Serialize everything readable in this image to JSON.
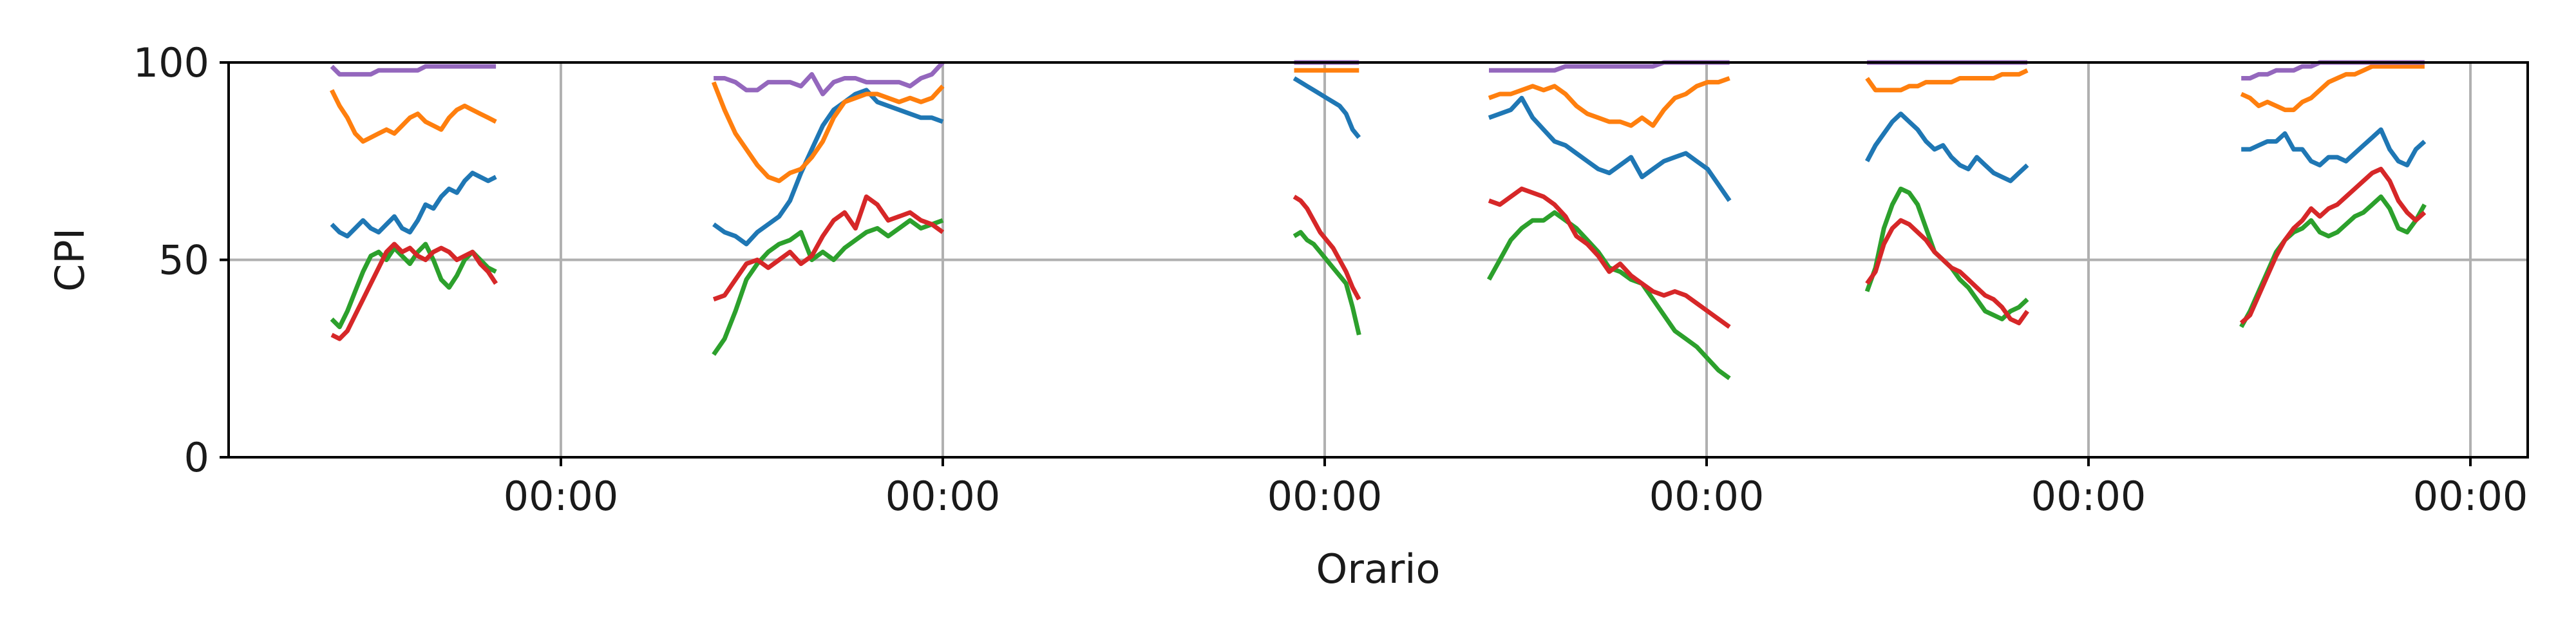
{
  "chart_data": {
    "type": "line",
    "xlabel": "Orario",
    "ylabel": "CPI",
    "ylim": [
      0,
      100
    ],
    "yticks": [
      0,
      50,
      100
    ],
    "xlim_days": [
      -0.87,
      0.15
    ],
    "xtick_labels": [
      "00:00",
      "00:00",
      "00:00",
      "00:00",
      "00:00",
      "00:00"
    ],
    "grid": true,
    "legend": "none",
    "panels": [
      {
        "start": -0.6,
        "end": -0.17,
        "series": [
          {
            "color": "#1f77b4",
            "values": [
              59,
              57,
              56,
              58,
              60,
              58,
              57,
              59,
              61,
              58,
              57,
              60,
              64,
              63,
              66,
              68,
              67,
              70,
              72,
              71,
              70,
              71
            ]
          },
          {
            "color": "#ff7f0e",
            "values": [
              93,
              89,
              86,
              82,
              80,
              81,
              82,
              83,
              82,
              84,
              86,
              87,
              85,
              84,
              83,
              86,
              88,
              89,
              88,
              87,
              86,
              85
            ]
          },
          {
            "color": "#2ca02c",
            "values": [
              35,
              33,
              37,
              42,
              47,
              51,
              52,
              50,
              53,
              51,
              49,
              52,
              54,
              50,
              45,
              43,
              46,
              50,
              52,
              50,
              48,
              47
            ]
          },
          {
            "color": "#d62728",
            "values": [
              31,
              30,
              32,
              36,
              40,
              44,
              48,
              52,
              54,
              52,
              53,
              51,
              50,
              52,
              53,
              52,
              50,
              51,
              52,
              49,
              47,
              44
            ]
          },
          {
            "color": "#9467bd",
            "values": [
              99,
              97,
              97,
              97,
              97,
              97,
              98,
              98,
              98,
              98,
              98,
              98,
              99,
              99,
              99,
              99,
              99,
              99,
              99,
              99,
              99,
              99
            ]
          }
        ]
      },
      {
        "start": 0.4,
        "end": 1.0,
        "series": [
          {
            "color": "#1f77b4",
            "values": [
              59,
              57,
              56,
              54,
              57,
              59,
              61,
              65,
              72,
              78,
              84,
              88,
              90,
              92,
              93,
              90,
              89,
              88,
              87,
              86,
              86,
              85
            ]
          },
          {
            "color": "#ff7f0e",
            "values": [
              95,
              88,
              82,
              78,
              74,
              71,
              70,
              72,
              73,
              76,
              80,
              86,
              90,
              91,
              92,
              92,
              91,
              90,
              91,
              90,
              91,
              94
            ]
          },
          {
            "color": "#2ca02c",
            "values": [
              26,
              30,
              37,
              45,
              49,
              52,
              54,
              55,
              57,
              50,
              52,
              50,
              53,
              55,
              57,
              58,
              56,
              58,
              60,
              58,
              59,
              60
            ]
          },
          {
            "color": "#d62728",
            "values": [
              40,
              41,
              45,
              49,
              50,
              48,
              50,
              52,
              49,
              51,
              56,
              60,
              62,
              58,
              66,
              64,
              60,
              61,
              62,
              60,
              59,
              57
            ]
          },
          {
            "color": "#9467bd",
            "values": [
              96,
              96,
              95,
              93,
              93,
              95,
              95,
              95,
              94,
              97,
              92,
              95,
              96,
              96,
              95,
              95,
              95,
              95,
              94,
              96,
              97,
              100
            ]
          }
        ]
      },
      {
        "start": 1.92,
        "end": 2.09,
        "series": [
          {
            "color": "#1f77b4",
            "values": [
              96,
              95,
              94,
              93,
              92,
              91,
              90,
              89,
              87,
              83,
              81
            ]
          },
          {
            "color": "#ff7f0e",
            "values": [
              98,
              98,
              98,
              98,
              98,
              98,
              98,
              98,
              98,
              98,
              98
            ]
          },
          {
            "color": "#2ca02c",
            "values": [
              56,
              57,
              55,
              54,
              52,
              50,
              48,
              46,
              44,
              38,
              31
            ]
          },
          {
            "color": "#d62728",
            "values": [
              66,
              65,
              63,
              60,
              57,
              55,
              53,
              50,
              47,
              43,
              40
            ]
          },
          {
            "color": "#9467bd",
            "values": [
              100,
              100,
              100,
              100,
              100,
              100,
              100,
              100,
              100,
              100,
              100
            ]
          }
        ]
      },
      {
        "start": 2.43,
        "end": 3.06,
        "series": [
          {
            "color": "#1f77b4",
            "values": [
              86,
              87,
              88,
              91,
              86,
              83,
              80,
              79,
              77,
              75,
              73,
              72,
              74,
              76,
              71,
              73,
              75,
              76,
              77,
              75,
              73,
              69,
              65
            ]
          },
          {
            "color": "#ff7f0e",
            "values": [
              91,
              92,
              92,
              93,
              94,
              93,
              94,
              92,
              89,
              87,
              86,
              85,
              85,
              84,
              86,
              84,
              88,
              91,
              92,
              94,
              95,
              95,
              96
            ]
          },
          {
            "color": "#2ca02c",
            "values": [
              45,
              50,
              55,
              58,
              60,
              60,
              62,
              60,
              58,
              55,
              52,
              48,
              47,
              45,
              44,
              40,
              36,
              32,
              30,
              28,
              25,
              22,
              20
            ]
          },
          {
            "color": "#d62728",
            "values": [
              65,
              64,
              66,
              68,
              67,
              66,
              64,
              61,
              56,
              54,
              51,
              47,
              49,
              46,
              44,
              42,
              41,
              42,
              41,
              39,
              37,
              35,
              33
            ]
          },
          {
            "color": "#9467bd",
            "values": [
              98,
              98,
              98,
              98,
              98,
              98,
              98,
              99,
              99,
              99,
              99,
              99,
              99,
              99,
              99,
              99,
              100,
              100,
              100,
              100,
              100,
              100,
              100
            ]
          }
        ]
      },
      {
        "start": 3.42,
        "end": 3.84,
        "series": [
          {
            "color": "#1f77b4",
            "values": [
              75,
              79,
              82,
              85,
              87,
              85,
              83,
              80,
              78,
              79,
              76,
              74,
              73,
              76,
              74,
              72,
              71,
              70,
              72,
              74
            ]
          },
          {
            "color": "#ff7f0e",
            "values": [
              96,
              93,
              93,
              93,
              93,
              94,
              94,
              95,
              95,
              95,
              95,
              96,
              96,
              96,
              96,
              96,
              97,
              97,
              97,
              98
            ]
          },
          {
            "color": "#2ca02c",
            "values": [
              42,
              48,
              58,
              64,
              68,
              67,
              64,
              58,
              52,
              50,
              48,
              45,
              43,
              40,
              37,
              36,
              35,
              37,
              38,
              40
            ]
          },
          {
            "color": "#d62728",
            "values": [
              44,
              47,
              54,
              58,
              60,
              59,
              57,
              55,
              52,
              50,
              48,
              47,
              45,
              43,
              41,
              40,
              38,
              35,
              34,
              37
            ]
          },
          {
            "color": "#9467bd",
            "values": [
              100,
              100,
              100,
              100,
              100,
              100,
              100,
              100,
              100,
              100,
              100,
              100,
              100,
              100,
              100,
              100,
              100,
              100,
              100,
              100
            ]
          }
        ]
      },
      {
        "start": 4.4,
        "end": 4.88,
        "series": [
          {
            "color": "#1f77b4",
            "values": [
              78,
              78,
              79,
              80,
              80,
              82,
              78,
              78,
              75,
              74,
              76,
              76,
              75,
              77,
              79,
              81,
              83,
              78,
              75,
              74,
              78,
              80
            ]
          },
          {
            "color": "#ff7f0e",
            "values": [
              92,
              91,
              89,
              90,
              89,
              88,
              88,
              90,
              91,
              93,
              95,
              96,
              97,
              97,
              98,
              99,
              99,
              99,
              99,
              99,
              99,
              99
            ]
          },
          {
            "color": "#2ca02c",
            "values": [
              33,
              37,
              42,
              47,
              52,
              55,
              57,
              58,
              60,
              57,
              56,
              57,
              59,
              61,
              62,
              64,
              66,
              63,
              58,
              57,
              60,
              64
            ]
          },
          {
            "color": "#d62728",
            "values": [
              34,
              36,
              41,
              46,
              51,
              55,
              58,
              60,
              63,
              61,
              63,
              64,
              66,
              68,
              70,
              72,
              73,
              70,
              65,
              62,
              60,
              62
            ]
          },
          {
            "color": "#9467bd",
            "values": [
              96,
              96,
              97,
              97,
              98,
              98,
              98,
              99,
              99,
              100,
              100,
              100,
              100,
              100,
              100,
              100,
              100,
              100,
              100,
              100,
              100,
              100
            ]
          }
        ]
      }
    ]
  }
}
